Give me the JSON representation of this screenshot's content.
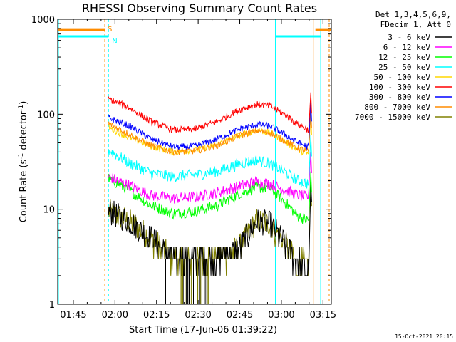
{
  "chart_data": {
    "type": "line",
    "title": "RHESSI Observing Summary Count Rates",
    "xlabel": "Start Time (17-Jun-06 01:39:22)",
    "ylabel_main": "Count Rate (s",
    "ylabel_sup1": "-1",
    "ylabel_mid": " detector",
    "ylabel_sup2": "-1",
    "ylabel_end": ")",
    "y_scale": "log",
    "ylim": [
      1,
      1000
    ],
    "xlim": [
      "01:39:22",
      "03:18:00"
    ],
    "x_ticks": [
      "01:45",
      "02:00",
      "02:15",
      "02:30",
      "02:45",
      "03:00",
      "03:15"
    ],
    "y_ticks": [
      "1",
      "10",
      "100",
      "1000"
    ],
    "legend": {
      "placement": "right",
      "header1": "Det 1,3,4,5,6,9,",
      "header2": "FDecim 1, Att 0"
    },
    "flag_labels": {
      "saa": "S",
      "night": "N"
    },
    "timestamp": "15-Oct-2021 20:15",
    "series": [
      {
        "name": "3 - 6 keV",
        "color": "#000000",
        "values": [
          9.5,
          7.5,
          5,
          3,
          3,
          3,
          4,
          7.5,
          7,
          4.5,
          2.7,
          2.5
        ]
      },
      {
        "name": "6 - 12 keV",
        "color": "#ff00ff",
        "values": [
          22,
          18,
          14,
          13,
          13.5,
          15,
          17.5,
          19.5,
          18.5,
          16,
          14,
          13.5
        ]
      },
      {
        "name": "12 - 25 keV",
        "color": "#00ff00",
        "values": [
          21,
          16,
          11,
          9,
          9.5,
          11,
          14.5,
          17,
          16.5,
          12,
          8.5,
          7.5
        ]
      },
      {
        "name": "25 - 50 keV",
        "color": "#00ffff",
        "values": [
          42,
          31,
          24,
          22,
          23,
          25,
          30,
          33,
          30,
          25,
          20,
          18.5
        ]
      },
      {
        "name": "50 - 100 keV",
        "color": "#ffd700",
        "values": [
          73,
          57,
          46,
          40,
          42,
          48,
          60,
          68,
          64,
          52,
          42,
          38
        ]
      },
      {
        "name": "100 - 300 keV",
        "color": "#ff0000",
        "values": [
          145,
          118,
          84,
          68,
          70,
          84,
          112,
          127,
          122,
          100,
          78,
          68
        ]
      },
      {
        "name": "300 - 800 keV",
        "color": "#0000ff",
        "values": [
          92,
          76,
          55,
          45,
          46,
          55,
          70,
          78,
          75,
          62,
          50,
          45
        ]
      },
      {
        "name": "800 - 7000 keV",
        "color": "#ff8c00",
        "values": [
          80,
          62,
          47,
          40,
          41,
          47,
          60,
          67,
          64,
          53,
          44,
          40
        ]
      },
      {
        "name": "7000 - 15000 keV",
        "color": "#808000",
        "values": [
          9.5,
          7.5,
          5,
          3,
          3,
          3,
          4,
          7.5,
          7,
          4.5,
          2.7,
          2.5
        ]
      }
    ],
    "x": [
      "01:57:40",
      "02:05",
      "02:13",
      "02:21",
      "02:29",
      "02:37",
      "02:45",
      "02:51",
      "02:56",
      "03:01",
      "03:06",
      "03:10"
    ]
  }
}
